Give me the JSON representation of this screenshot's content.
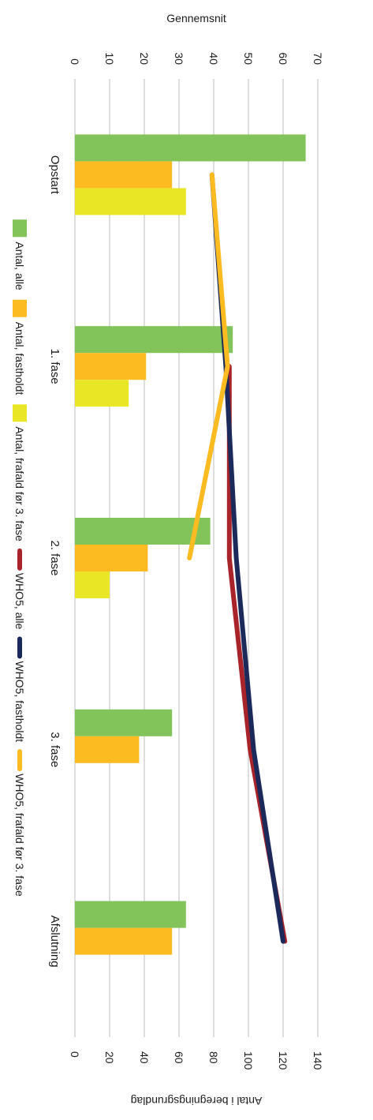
{
  "chart_data": {
    "type": "bar",
    "orientation": "vertical-bars, rotated 90 degrees clockwise",
    "categories": [
      "Opstart",
      "1. fase",
      "2. fase",
      "3. fase",
      "Afslutning"
    ],
    "bar_series": [
      {
        "name": "Antal, alle",
        "color": "#82c45a",
        "values": [
          133,
          91,
          78,
          56,
          64
        ]
      },
      {
        "name": "Antal, fastholdt",
        "color": "#fbbb21",
        "values": [
          56,
          41,
          42,
          37,
          56
        ]
      },
      {
        "name": "Antal, frafald før 3. fase",
        "color": "#e8e625",
        "values": [
          64,
          31,
          20,
          null,
          null
        ]
      }
    ],
    "line_series": [
      {
        "name": "WHO5, alle",
        "color": "#a8232a",
        "values": [
          null,
          44.5,
          44.5,
          50.5,
          60.5
        ]
      },
      {
        "name": "WHO5, fastholdt",
        "color": "#1b2a5a",
        "values": [
          39.5,
          43.5,
          46.5,
          51.5,
          60
        ]
      },
      {
        "name": "WHO5, frafald før 3. fase",
        "color": "#fbbb21",
        "values": [
          39.5,
          44,
          33,
          null,
          null
        ]
      }
    ],
    "y_left": {
      "label": "Gennemsnit",
      "range": [
        0,
        70
      ],
      "ticks": [
        "0",
        "10",
        "20",
        "30",
        "40",
        "50",
        "60",
        "70"
      ]
    },
    "y_right": {
      "label": "Antal i beregningsgrundlag",
      "range": [
        0,
        140
      ],
      "ticks": [
        "0",
        "20",
        "40",
        "60",
        "80",
        "100",
        "120",
        "140"
      ]
    },
    "grid": true,
    "legend": "bottom"
  }
}
